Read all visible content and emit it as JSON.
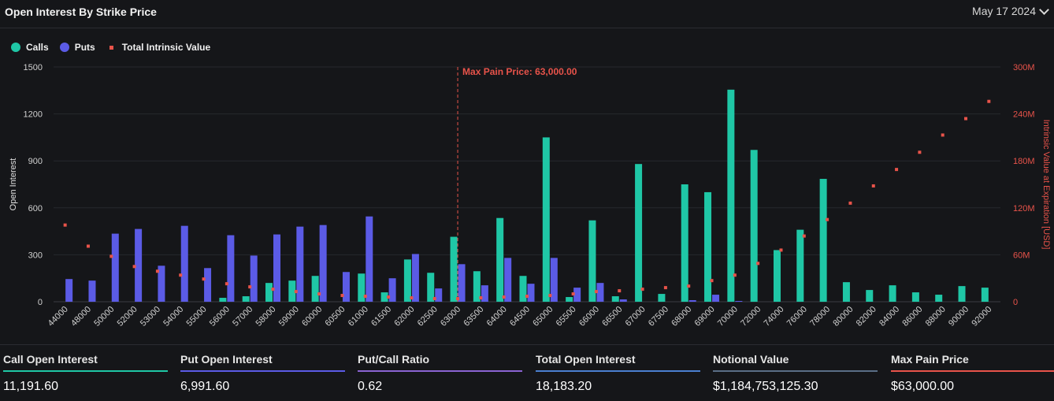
{
  "header": {
    "title": "Open Interest By Strike Price",
    "date": "May 17 2024"
  },
  "legend": {
    "calls": "Calls",
    "puts": "Puts",
    "intrinsic": "Total Intrinsic Value"
  },
  "colors": {
    "calls": "#1fc7a6",
    "puts": "#5b5be6",
    "intrinsic": "#e8534a",
    "ratio": "#8a63d2",
    "total": "#4a7fd0",
    "notional": "#5a6e86",
    "maxpain": "#e8534a"
  },
  "stats": [
    {
      "label": "Call Open Interest",
      "value": "11,191.60",
      "color": "#1fc7a6"
    },
    {
      "label": "Put Open Interest",
      "value": "6,991.60",
      "color": "#5b5be6"
    },
    {
      "label": "Put/Call Ratio",
      "value": "0.62",
      "color": "#8a63d2"
    },
    {
      "label": "Total Open Interest",
      "value": "18,183.20",
      "color": "#4a7fd0"
    },
    {
      "label": "Notional Value",
      "value": "$1,184,753,125.30",
      "color": "#5a6e86"
    },
    {
      "label": "Max Pain Price",
      "value": "$63,000.00",
      "color": "#e8534a"
    }
  ],
  "chart_data": {
    "type": "bar",
    "ylabel": "Open Interest",
    "y2label": "Intrinsic Value at Expiration [USD]",
    "ylim": [
      0,
      1500
    ],
    "y2lim": [
      0,
      300
    ],
    "yticks": [
      "0",
      "300",
      "600",
      "900",
      "1200",
      "1500"
    ],
    "y2ticks": [
      "0",
      "60M",
      "120M",
      "180M",
      "240M",
      "300M"
    ],
    "marker_label": "Max Pain Price: 63,000.00",
    "marker_category": "63000",
    "categories": [
      "44000",
      "48000",
      "50000",
      "52000",
      "53000",
      "54000",
      "55000",
      "56000",
      "57000",
      "58000",
      "59000",
      "60000",
      "60500",
      "61000",
      "61500",
      "62000",
      "62500",
      "63000",
      "63500",
      "64000",
      "64500",
      "65000",
      "65500",
      "66000",
      "66500",
      "67000",
      "67500",
      "68000",
      "69000",
      "70000",
      "72000",
      "74000",
      "76000",
      "78000",
      "80000",
      "82000",
      "84000",
      "86000",
      "88000",
      "90000",
      "92000"
    ],
    "series": [
      {
        "name": "Calls",
        "type": "bar",
        "values": [
          0,
          0,
          0,
          0,
          0,
          0,
          0,
          25,
          35,
          120,
          135,
          165,
          0,
          180,
          60,
          270,
          185,
          415,
          195,
          535,
          165,
          1050,
          30,
          520,
          35,
          880,
          50,
          750,
          700,
          1355,
          970,
          330,
          460,
          785,
          125,
          75,
          105,
          60,
          45,
          100,
          90
        ]
      },
      {
        "name": "Puts",
        "type": "bar",
        "values": [
          145,
          135,
          435,
          465,
          230,
          485,
          215,
          425,
          295,
          430,
          480,
          490,
          190,
          545,
          150,
          305,
          85,
          240,
          105,
          280,
          115,
          280,
          90,
          120,
          15,
          0,
          0,
          10,
          45,
          5,
          0,
          0,
          0,
          0,
          0,
          0,
          0,
          0,
          0,
          0,
          0
        ]
      },
      {
        "name": "Total Intrinsic Value",
        "type": "scatter",
        "unit": "M USD",
        "values": [
          98,
          71,
          58,
          45,
          39,
          34,
          29,
          23,
          19,
          16,
          13,
          10,
          8,
          7,
          6,
          5,
          4,
          4,
          5,
          6,
          7,
          8,
          10,
          13,
          14,
          16,
          18,
          20,
          27,
          34,
          49,
          66,
          84,
          105,
          126,
          148,
          169,
          191,
          213,
          234,
          256
        ]
      }
    ]
  }
}
